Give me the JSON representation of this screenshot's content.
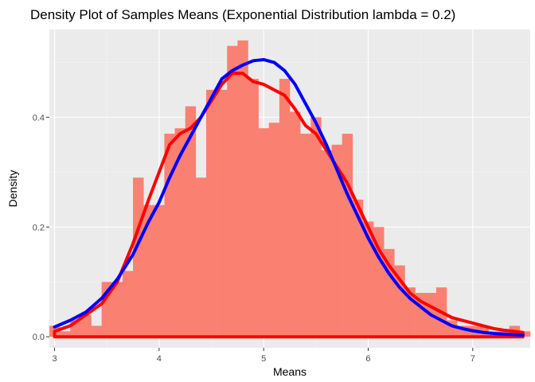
{
  "chart_data": {
    "type": "bar",
    "title": "Density Plot of Samples Means (Exponential Distribution lambda = 0.2)",
    "xlabel": "Means",
    "ylabel": "Density",
    "xlim": [
      2.95,
      7.55
    ],
    "ylim": [
      -0.02,
      0.56
    ],
    "x_ticks": [
      3,
      4,
      5,
      6,
      7
    ],
    "y_ticks": [
      0.0,
      0.2,
      0.4
    ],
    "y_tick_labels": [
      "0.0",
      "0.2",
      "0.4"
    ],
    "grid": true,
    "colors": {
      "panel": "#ebebeb",
      "grid_major": "#ffffff",
      "grid_minor": "#f4f4f4",
      "bars": "#fa8072",
      "empirical_density": "#ff0000",
      "normal_density": "#0000ff"
    },
    "histogram": {
      "bin_width": 0.1,
      "bin_starts": [
        2.95,
        3.05,
        3.15,
        3.25,
        3.35,
        3.45,
        3.55,
        3.65,
        3.75,
        3.85,
        3.95,
        4.05,
        4.15,
        4.25,
        4.35,
        4.45,
        4.55,
        4.65,
        4.75,
        4.85,
        4.95,
        5.05,
        5.15,
        5.25,
        5.35,
        5.45,
        5.55,
        5.65,
        5.75,
        5.85,
        5.95,
        6.05,
        6.15,
        6.25,
        6.35,
        6.45,
        6.55,
        6.65,
        6.75,
        6.85,
        6.95,
        7.05,
        7.15,
        7.25,
        7.35,
        7.45
      ],
      "densities": [
        0.02,
        0.01,
        0.03,
        0.04,
        0.02,
        0.1,
        0.1,
        0.12,
        0.29,
        0.24,
        0.24,
        0.37,
        0.38,
        0.42,
        0.29,
        0.45,
        0.45,
        0.53,
        0.54,
        0.47,
        0.38,
        0.39,
        0.47,
        0.41,
        0.37,
        0.4,
        0.34,
        0.35,
        0.37,
        0.25,
        0.21,
        0.2,
        0.16,
        0.13,
        0.09,
        0.08,
        0.08,
        0.09,
        0.03,
        0.02,
        0.02,
        0.02,
        0.01,
        0.01,
        0.02,
        0.01
      ]
    },
    "series": [
      {
        "type": "line",
        "x": [
          3.0,
          3.15,
          3.3,
          3.45,
          3.6,
          3.75,
          3.9,
          4.0,
          4.1,
          4.2,
          4.3,
          4.4,
          4.5,
          4.6,
          4.7,
          4.8,
          4.9,
          5.0,
          5.1,
          5.2,
          5.3,
          5.4,
          5.5,
          5.6,
          5.7,
          5.8,
          5.9,
          6.0,
          6.1,
          6.2,
          6.3,
          6.4,
          6.5,
          6.6,
          6.7,
          6.8,
          6.9,
          7.0,
          7.1,
          7.2,
          7.3,
          7.4,
          7.48
        ],
        "y": [
          0.01,
          0.02,
          0.04,
          0.06,
          0.1,
          0.17,
          0.25,
          0.3,
          0.35,
          0.37,
          0.38,
          0.4,
          0.43,
          0.46,
          0.48,
          0.48,
          0.465,
          0.46,
          0.45,
          0.44,
          0.415,
          0.385,
          0.37,
          0.34,
          0.31,
          0.28,
          0.24,
          0.2,
          0.16,
          0.13,
          0.105,
          0.08,
          0.065,
          0.055,
          0.045,
          0.035,
          0.03,
          0.025,
          0.02,
          0.015,
          0.012,
          0.01,
          0.008
        ]
      },
      {
        "type": "line",
        "x": [
          3.0,
          3.15,
          3.3,
          3.45,
          3.6,
          3.75,
          3.9,
          4.0,
          4.1,
          4.2,
          4.3,
          4.4,
          4.5,
          4.6,
          4.7,
          4.8,
          4.9,
          5.0,
          5.1,
          5.2,
          5.3,
          5.4,
          5.5,
          5.6,
          5.7,
          5.8,
          5.9,
          6.0,
          6.1,
          6.2,
          6.3,
          6.4,
          6.5,
          6.6,
          6.7,
          6.8,
          6.9,
          7.0,
          7.1,
          7.2,
          7.3,
          7.4,
          7.48
        ],
        "y": [
          0.018,
          0.03,
          0.045,
          0.07,
          0.105,
          0.15,
          0.21,
          0.245,
          0.29,
          0.33,
          0.365,
          0.4,
          0.435,
          0.47,
          0.485,
          0.495,
          0.503,
          0.505,
          0.5,
          0.485,
          0.46,
          0.425,
          0.39,
          0.35,
          0.305,
          0.26,
          0.22,
          0.18,
          0.145,
          0.115,
          0.09,
          0.07,
          0.055,
          0.04,
          0.03,
          0.02,
          0.015,
          0.011,
          0.008,
          0.006,
          0.005,
          0.004,
          0.003
        ]
      }
    ]
  }
}
